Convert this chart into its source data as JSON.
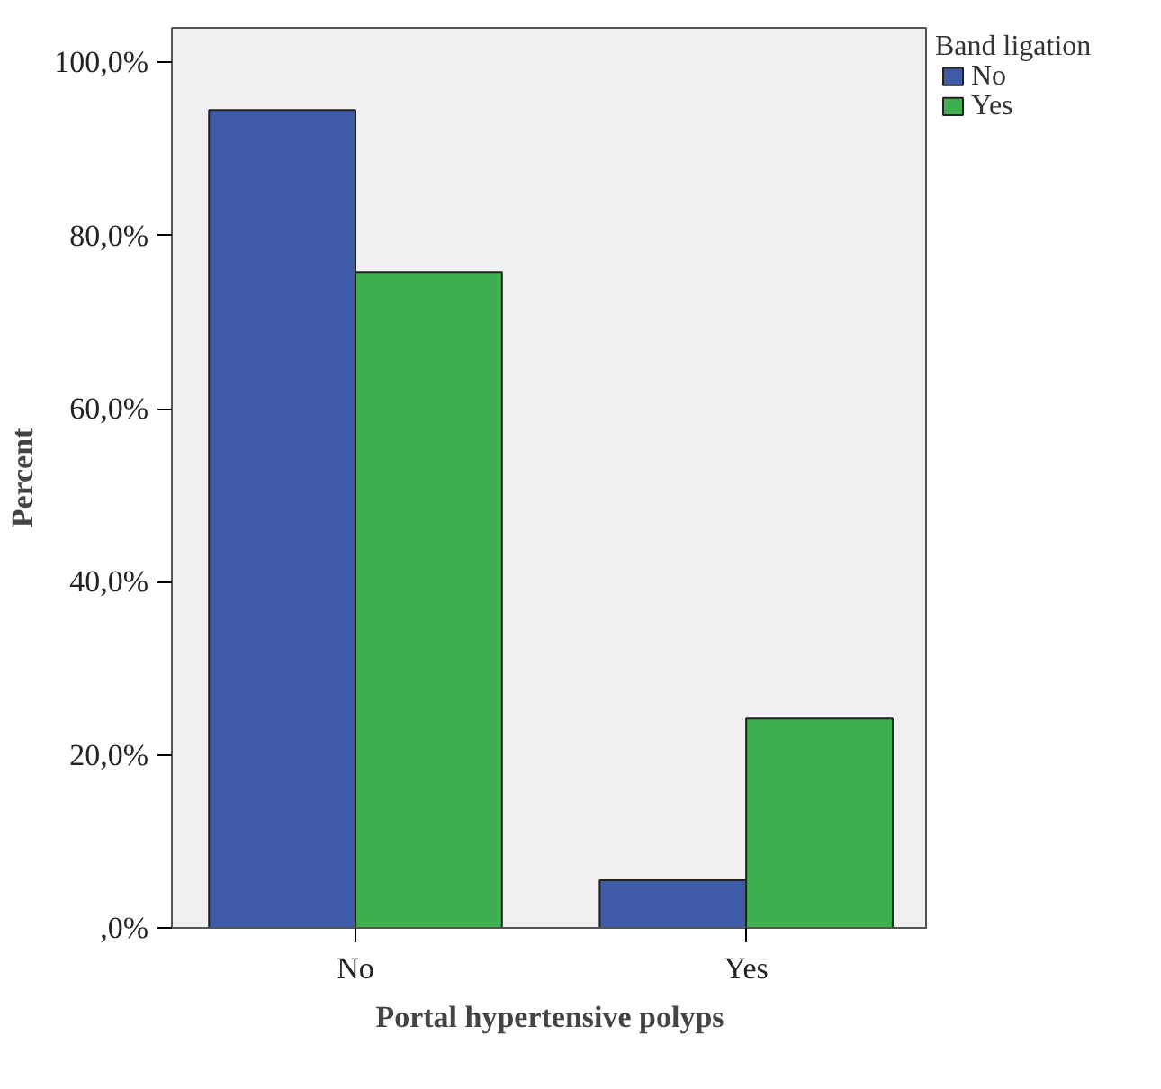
{
  "chart_data": {
    "type": "bar",
    "xlabel": "Portal hypertensive polyps",
    "ylabel": "Percent",
    "legend_title": "Band ligation",
    "categories": [
      "No",
      "Yes"
    ],
    "series": [
      {
        "name": "No",
        "color": "#3f5aa6",
        "values": [
          94.5,
          5.5
        ]
      },
      {
        "name": "Yes",
        "color": "#3fb04f",
        "values": [
          75.8,
          24.2
        ]
      }
    ],
    "ylim": [
      0,
      104
    ],
    "yticks": [
      {
        "value": 0,
        "label": ",0%"
      },
      {
        "value": 20,
        "label": "20,0%"
      },
      {
        "value": 40,
        "label": "40,0%"
      },
      {
        "value": 60,
        "label": "60,0%"
      },
      {
        "value": 80,
        "label": "80,0%"
      },
      {
        "value": 100,
        "label": "100,0%"
      }
    ],
    "grid": false,
    "legend": "top right"
  }
}
